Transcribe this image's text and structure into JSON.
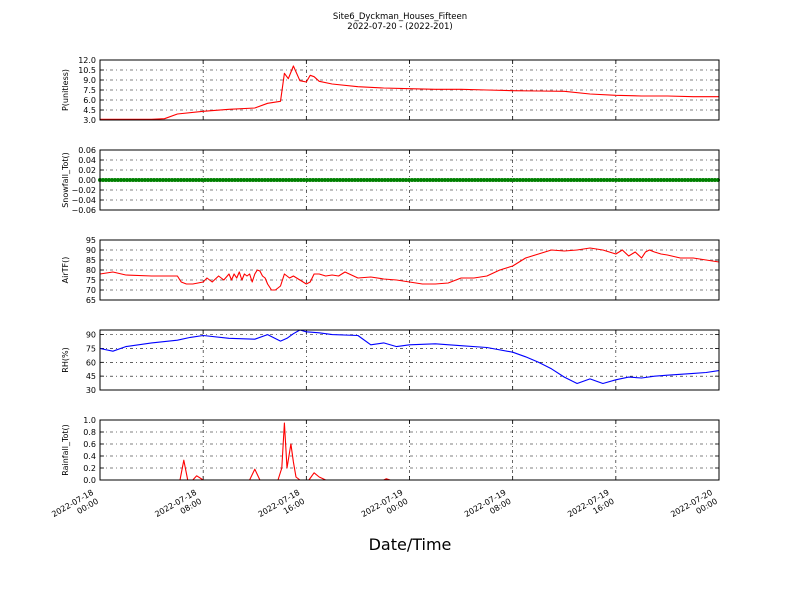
{
  "figure": {
    "title": "Site6_Dyckman_Houses_Fifteen",
    "subtitle": "2022-07-20 - (2022-201)",
    "xlabel": "Date/Time"
  },
  "chart_data": [
    {
      "type": "line",
      "ylabel": "P(unitless)",
      "ylim": [
        3.0,
        12.0
      ],
      "yticks": [
        "12.0",
        "10.5",
        "9.0",
        "7.5",
        "6.0",
        "4.5",
        "3.0"
      ],
      "ytick_values": [
        12.0,
        10.5,
        9.0,
        7.5,
        6.0,
        4.5,
        3.0
      ],
      "grid": true,
      "series": [
        {
          "color": "#ff0000",
          "x": [
            0,
            4,
            5,
            6,
            8,
            10,
            12,
            13,
            14,
            14.3,
            14.6,
            15,
            15.5,
            16,
            16.3,
            16.6,
            17,
            18,
            20,
            22,
            24,
            26,
            28,
            30,
            32,
            34,
            36,
            38,
            40,
            42,
            44,
            46,
            48
          ],
          "values": [
            3.1,
            3.1,
            3.2,
            3.9,
            4.3,
            4.6,
            4.8,
            5.5,
            5.8,
            10.0,
            9.2,
            11.1,
            8.9,
            8.7,
            9.7,
            9.5,
            8.8,
            8.4,
            8.0,
            7.8,
            7.7,
            7.6,
            7.6,
            7.5,
            7.4,
            7.35,
            7.3,
            6.9,
            6.7,
            6.6,
            6.6,
            6.5,
            6.5
          ]
        }
      ]
    },
    {
      "type": "line",
      "ylabel": "Snowfall_Tot()",
      "ylim": [
        -0.06,
        0.06
      ],
      "yticks": [
        "0.06",
        "0.04",
        "0.02",
        "0.00",
        "−0.02",
        "−0.04",
        "−0.06"
      ],
      "ytick_values": [
        0.06,
        0.04,
        0.02,
        0.0,
        -0.02,
        -0.04,
        -0.06
      ],
      "grid": true,
      "series": [
        {
          "color": "#008000",
          "style": "markers",
          "x": [
            0,
            48
          ],
          "values": [
            0,
            0
          ]
        }
      ]
    },
    {
      "type": "line",
      "ylabel": "AirTF()",
      "ylim": [
        65,
        95
      ],
      "yticks": [
        "95",
        "90",
        "85",
        "80",
        "75",
        "70",
        "65"
      ],
      "ytick_values": [
        95,
        90,
        85,
        80,
        75,
        70,
        65
      ],
      "grid": true,
      "series": [
        {
          "color": "#ff0000",
          "x": [
            0,
            1,
            2,
            4,
            6,
            6.3,
            6.7,
            7.2,
            8,
            8.3,
            8.7,
            9.2,
            9.6,
            10,
            10.2,
            10.4,
            10.6,
            10.8,
            11,
            11.2,
            11.4,
            11.6,
            11.8,
            12,
            12.2,
            12.4,
            12.6,
            12.8,
            13,
            13.3,
            13.6,
            14,
            14.3,
            14.7,
            15,
            15.5,
            16,
            16.3,
            16.6,
            17,
            17.5,
            18,
            18.5,
            19,
            20,
            21,
            22,
            23,
            24,
            25,
            26,
            27,
            28,
            29,
            30,
            31,
            32,
            33,
            34,
            35,
            36,
            37,
            38,
            39,
            40,
            40.5,
            41,
            41.5,
            42,
            42.3,
            42.6,
            43,
            43.5,
            44,
            45,
            46,
            47,
            48
          ],
          "values": [
            78,
            79,
            77.5,
            77,
            77,
            74,
            73,
            73,
            74,
            76,
            74,
            77,
            75,
            78,
            75,
            78,
            76,
            79,
            75,
            78,
            77,
            78,
            74,
            78,
            80,
            79.5,
            77,
            76,
            73,
            70,
            70,
            72,
            78,
            76,
            77,
            75,
            73,
            74,
            78,
            78,
            77,
            77.5,
            77,
            79,
            76,
            76.5,
            75.5,
            75,
            74,
            73,
            73,
            73.5,
            76,
            76,
            77,
            80,
            82,
            86,
            88,
            90,
            89.5,
            90,
            91,
            90,
            88,
            90,
            87,
            89,
            86,
            89,
            90,
            89,
            88,
            87.5,
            86,
            86,
            85,
            84
          ]
        }
      ]
    },
    {
      "type": "line",
      "ylabel": "RH(%)",
      "ylim": [
        30,
        95
      ],
      "yticks": [
        "90",
        "75",
        "60",
        "45",
        "30"
      ],
      "ytick_values": [
        90,
        75,
        60,
        45,
        30
      ],
      "grid": true,
      "series": [
        {
          "color": "#0000ff",
          "x": [
            0,
            1,
            2,
            4,
            6,
            7,
            8,
            10,
            12,
            13,
            14,
            14.5,
            15,
            15.5,
            16,
            17,
            18,
            20,
            21,
            22,
            23,
            24,
            26,
            28,
            30,
            32,
            33,
            34,
            35,
            36,
            37,
            38,
            39,
            40,
            41,
            42,
            43,
            44,
            45,
            46,
            47,
            48
          ],
          "values": [
            75,
            72,
            77,
            81,
            84,
            87,
            89,
            86,
            85,
            90,
            83,
            86,
            91,
            95,
            93,
            92,
            90,
            89,
            79,
            81,
            77,
            79,
            80,
            78,
            76,
            71,
            66,
            60,
            53,
            44,
            37,
            42,
            37,
            41,
            44,
            43,
            45,
            46,
            47,
            48,
            49,
            51
          ]
        }
      ]
    },
    {
      "type": "line",
      "ylabel": "Rainfall_Tot()",
      "ylim": [
        0.0,
        1.0
      ],
      "yticks": [
        "1.0",
        "0.8",
        "0.6",
        "0.4",
        "0.2",
        "0.0"
      ],
      "ytick_values": [
        1.0,
        0.8,
        0.6,
        0.4,
        0.2,
        0.0
      ],
      "grid": true,
      "series": [
        {
          "color": "#ff0000",
          "x": [
            0,
            6.2,
            6.5,
            6.8,
            7.2,
            7.5,
            8,
            11.6,
            12,
            12.4,
            13.8,
            14.1,
            14.3,
            14.5,
            14.8,
            15,
            15.2,
            15.5,
            15.8,
            16.2,
            16.6,
            17,
            17.5,
            20,
            22,
            22.2,
            22.5,
            48
          ],
          "values": [
            0,
            0,
            0.33,
            0,
            0,
            0.07,
            0,
            0,
            0.18,
            0,
            0,
            0.2,
            0.95,
            0.2,
            0.6,
            0.3,
            0.05,
            0,
            0,
            0,
            0.12,
            0.05,
            0,
            0,
            0,
            0.02,
            0,
            0
          ]
        }
      ]
    }
  ],
  "x_axis": {
    "range": [
      0,
      48
    ],
    "ticks": [
      {
        "value": 0,
        "line1": "2022-07-18",
        "line2": "00:00"
      },
      {
        "value": 8,
        "line1": "2022-07-18",
        "line2": "08:00"
      },
      {
        "value": 16,
        "line1": "2022-07-18",
        "line2": "16:00"
      },
      {
        "value": 24,
        "line1": "2022-07-19",
        "line2": "00:00"
      },
      {
        "value": 32,
        "line1": "2022-07-19",
        "line2": "08:00"
      },
      {
        "value": 40,
        "line1": "2022-07-19",
        "line2": "16:00"
      },
      {
        "value": 48,
        "line1": "2022-07-20",
        "line2": "00:00"
      }
    ]
  }
}
